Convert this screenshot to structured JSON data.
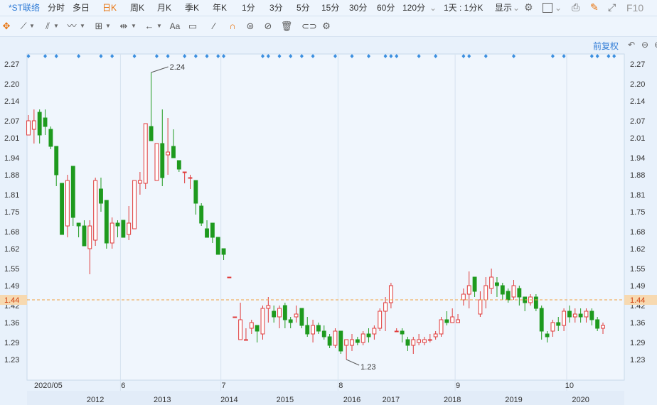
{
  "top_bar": {
    "stock_name": "*ST联络",
    "periods": [
      "分时",
      "多日",
      "日K",
      "周K",
      "月K",
      "季K",
      "年K",
      "1分",
      "3分",
      "5分",
      "15分",
      "30分",
      "60分",
      "120分"
    ],
    "selected_period": "日K",
    "period_selector": "1天 : 1分K",
    "display_label": "显示",
    "f10_label": "F10"
  },
  "toolbar": {
    "icons": [
      "crosshair-icon",
      "line-icon",
      "channel-icon",
      "wave-icon",
      "measure-icon",
      "range-icon",
      "arrow-icon",
      "text-icon",
      "note-icon",
      "pen-icon",
      "magnet-icon",
      "hide-icon",
      "eye-off-icon",
      "delete-icon",
      "link-icon",
      "settings-icon"
    ]
  },
  "chart_controls": {
    "adjust_label": "前复权"
  },
  "chart_data": {
    "type": "candlestick",
    "price_axis_ticks": [
      "2.27",
      "2.20",
      "2.14",
      "2.07",
      "2.01",
      "1.94",
      "1.88",
      "1.81",
      "1.75",
      "1.68",
      "1.62",
      "1.55",
      "1.49",
      "1.42",
      "1.36",
      "1.29",
      "1.23"
    ],
    "current_price_label": "1.44",
    "max_label": "2.24",
    "min_label": "1.23",
    "date_labels": [
      {
        "text": "2020/05",
        "i": 0
      },
      {
        "text": "6",
        "i": 17
      },
      {
        "text": "7",
        "i": 35
      },
      {
        "text": "8",
        "i": 56
      },
      {
        "text": "9",
        "i": 77
      },
      {
        "text": "10",
        "i": 97
      }
    ],
    "year_labels": [
      {
        "text": "2012",
        "i": 12
      },
      {
        "text": "2013",
        "i": 24
      },
      {
        "text": "2014",
        "i": 36
      },
      {
        "text": "2015",
        "i": 46
      },
      {
        "text": "2016",
        "i": 58
      },
      {
        "text": "2017",
        "i": 65
      },
      {
        "text": "2018",
        "i": 76
      },
      {
        "text": "2019",
        "i": 87
      },
      {
        "text": "2020",
        "i": 99
      }
    ],
    "event_marker_indices": [
      0,
      3,
      5,
      9,
      13,
      15,
      19,
      23,
      25,
      28,
      30,
      32,
      34,
      35,
      42,
      43,
      45,
      47,
      49,
      51,
      55,
      58,
      61,
      64,
      65,
      66,
      70,
      73,
      78,
      79,
      82,
      87,
      94,
      96,
      101,
      102,
      104,
      105
    ],
    "candles": [
      [
        2.02,
        2.07,
        2.09,
        2.02
      ],
      [
        2.04,
        2.07,
        2.11,
        1.99
      ],
      [
        2.1,
        2.02,
        2.11,
        1.99
      ],
      [
        2.08,
        2.05,
        2.11,
        2.02
      ],
      [
        2.04,
        1.98,
        2.05,
        1.97
      ],
      [
        1.98,
        1.88,
        1.98,
        1.84
      ],
      [
        1.85,
        1.67,
        1.85,
        1.67
      ],
      [
        1.7,
        1.86,
        1.88,
        1.66
      ],
      [
        1.91,
        1.73,
        1.91,
        1.7
      ],
      [
        1.71,
        1.7,
        1.71,
        1.66
      ],
      [
        1.7,
        1.63,
        1.72,
        1.63
      ],
      [
        1.62,
        1.7,
        1.72,
        1.53
      ],
      [
        1.65,
        1.86,
        1.87,
        1.63
      ],
      [
        1.83,
        1.78,
        1.87,
        1.75
      ],
      [
        1.79,
        1.64,
        1.79,
        1.62
      ],
      [
        1.64,
        1.71,
        1.73,
        1.62
      ],
      [
        1.71,
        1.7,
        1.72,
        1.66
      ],
      [
        1.72,
        1.66,
        1.72,
        1.66
      ],
      [
        1.67,
        1.71,
        1.77,
        1.65
      ],
      [
        1.69,
        1.86,
        1.86,
        1.69
      ],
      [
        1.85,
        1.86,
        1.89,
        1.81
      ],
      [
        1.85,
        2.06,
        2.06,
        1.83
      ],
      [
        2.05,
        2.0,
        2.24,
        2.0
      ],
      [
        1.86,
        1.99,
        1.99,
        1.86
      ],
      [
        1.99,
        1.87,
        2.11,
        1.84
      ],
      [
        1.95,
        1.96,
        2.08,
        1.88
      ],
      [
        1.98,
        1.94,
        2.04,
        1.94
      ],
      [
        1.93,
        1.9,
        1.93,
        1.89
      ],
      [
        1.89,
        1.89,
        1.89,
        1.85
      ],
      [
        1.87,
        1.87,
        1.88,
        1.83
      ],
      [
        1.86,
        1.78,
        1.86,
        1.74
      ],
      [
        1.77,
        1.71,
        1.78,
        1.7
      ],
      [
        1.69,
        1.66,
        1.72,
        1.66
      ],
      [
        1.71,
        1.66,
        1.71,
        1.64
      ],
      [
        1.66,
        1.6,
        1.66,
        1.6
      ],
      [
        1.62,
        1.6,
        1.62,
        1.58
      ],
      [
        1.52,
        1.52,
        1.52,
        1.52
      ],
      [
        1.38,
        1.38,
        1.38,
        1.38
      ],
      [
        1.3,
        1.37,
        1.43,
        1.3
      ],
      [
        1.3,
        1.3,
        1.34,
        1.3
      ],
      [
        1.34,
        1.36,
        1.37,
        1.32
      ],
      [
        1.35,
        1.33,
        1.35,
        1.29
      ],
      [
        1.32,
        1.41,
        1.42,
        1.3
      ],
      [
        1.41,
        1.42,
        1.45,
        1.36
      ],
      [
        1.4,
        1.38,
        1.42,
        1.36
      ],
      [
        1.38,
        1.41,
        1.42,
        1.34
      ],
      [
        1.42,
        1.37,
        1.43,
        1.34
      ],
      [
        1.37,
        1.36,
        1.38,
        1.34
      ],
      [
        1.38,
        1.39,
        1.42,
        1.36
      ],
      [
        1.41,
        1.35,
        1.41,
        1.34
      ],
      [
        1.35,
        1.32,
        1.38,
        1.31
      ],
      [
        1.32,
        1.35,
        1.37,
        1.29
      ],
      [
        1.35,
        1.33,
        1.36,
        1.32
      ],
      [
        1.33,
        1.31,
        1.35,
        1.3
      ],
      [
        1.31,
        1.28,
        1.32,
        1.27
      ],
      [
        1.28,
        1.33,
        1.34,
        1.27
      ],
      [
        1.33,
        1.26,
        1.33,
        1.25
      ],
      [
        1.28,
        1.3,
        1.3,
        1.23
      ],
      [
        1.28,
        1.3,
        1.32,
        1.26
      ],
      [
        1.3,
        1.29,
        1.31,
        1.28
      ],
      [
        1.29,
        1.32,
        1.33,
        1.28
      ],
      [
        1.32,
        1.31,
        1.34,
        1.29
      ],
      [
        1.32,
        1.34,
        1.35,
        1.3
      ],
      [
        1.34,
        1.4,
        1.41,
        1.33
      ],
      [
        1.4,
        1.43,
        1.45,
        1.33
      ],
      [
        1.43,
        1.49,
        1.5,
        1.41
      ],
      [
        1.33,
        1.33,
        1.34,
        1.33
      ],
      [
        1.33,
        1.32,
        1.34,
        1.29
      ],
      [
        1.3,
        1.28,
        1.31,
        1.26
      ],
      [
        1.28,
        1.3,
        1.31,
        1.25
      ],
      [
        1.29,
        1.3,
        1.32,
        1.28
      ],
      [
        1.29,
        1.3,
        1.31,
        1.28
      ],
      [
        1.3,
        1.3,
        1.32,
        1.29
      ],
      [
        1.31,
        1.32,
        1.33,
        1.3
      ],
      [
        1.32,
        1.37,
        1.38,
        1.31
      ],
      [
        1.37,
        1.36,
        1.4,
        1.35
      ],
      [
        1.36,
        1.38,
        1.41,
        1.36
      ],
      [
        1.36,
        1.37,
        1.39,
        1.36
      ],
      [
        1.44,
        1.46,
        1.48,
        1.42
      ],
      [
        1.46,
        1.49,
        1.54,
        1.41
      ],
      [
        1.52,
        1.47,
        1.52,
        1.45
      ],
      [
        1.39,
        1.44,
        1.47,
        1.38
      ],
      [
        1.44,
        1.49,
        1.52,
        1.41
      ],
      [
        1.48,
        1.52,
        1.55,
        1.46
      ],
      [
        1.5,
        1.49,
        1.52,
        1.45
      ],
      [
        1.49,
        1.46,
        1.5,
        1.44
      ],
      [
        1.47,
        1.44,
        1.48,
        1.43
      ],
      [
        1.45,
        1.49,
        1.51,
        1.44
      ],
      [
        1.48,
        1.45,
        1.49,
        1.42
      ],
      [
        1.45,
        1.43,
        1.45,
        1.4
      ],
      [
        1.43,
        1.45,
        1.46,
        1.42
      ],
      [
        1.45,
        1.41,
        1.46,
        1.4
      ],
      [
        1.41,
        1.33,
        1.42,
        1.3
      ],
      [
        1.32,
        1.31,
        1.33,
        1.29
      ],
      [
        1.33,
        1.36,
        1.37,
        1.31
      ],
      [
        1.36,
        1.35,
        1.38,
        1.33
      ],
      [
        1.35,
        1.4,
        1.41,
        1.33
      ],
      [
        1.4,
        1.38,
        1.42,
        1.36
      ],
      [
        1.38,
        1.39,
        1.41,
        1.36
      ],
      [
        1.39,
        1.38,
        1.41,
        1.36
      ],
      [
        1.38,
        1.4,
        1.41,
        1.36
      ],
      [
        1.4,
        1.37,
        1.41,
        1.35
      ],
      [
        1.37,
        1.34,
        1.38,
        1.33
      ],
      [
        1.34,
        1.35,
        1.36,
        1.32
      ]
    ]
  }
}
